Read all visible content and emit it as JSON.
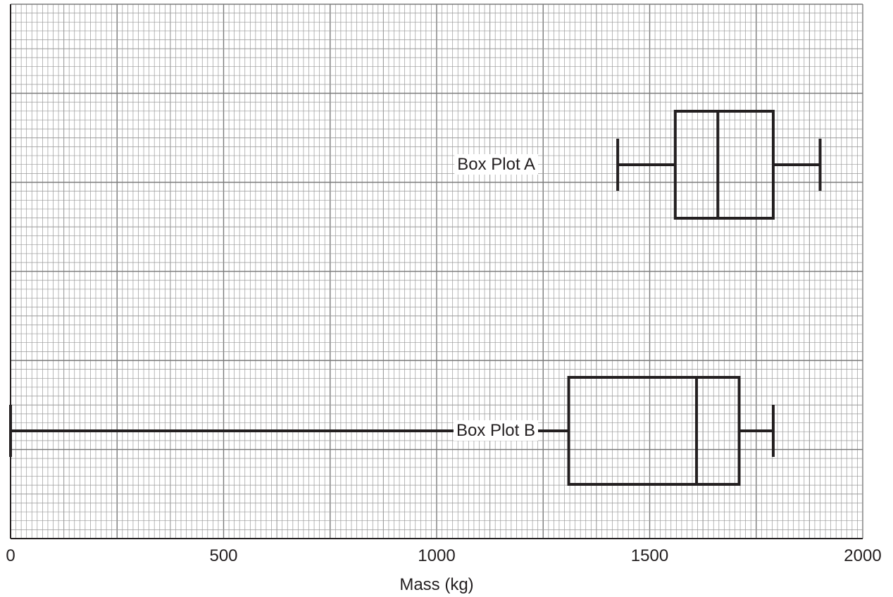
{
  "chart_data": {
    "type": "boxplot",
    "orientation": "horizontal",
    "xlabel": "Mass (kg)",
    "xlim": [
      0,
      2000
    ],
    "xticks": [
      0,
      500,
      1000,
      1500,
      2000
    ],
    "grid": true,
    "series": [
      {
        "name": "Box Plot A",
        "min": 1425,
        "q1": 1560,
        "median": 1660,
        "q3": 1790,
        "max": 1900
      },
      {
        "name": "Box Plot B",
        "min": 0,
        "q1": 1310,
        "median": 1610,
        "q3": 1710,
        "max": 1790
      }
    ]
  },
  "colors": {
    "grid_minor": "#9a9a9a",
    "grid_major": "#7a7a7a",
    "box_stroke": "#231f20",
    "axis": "#231f20"
  }
}
